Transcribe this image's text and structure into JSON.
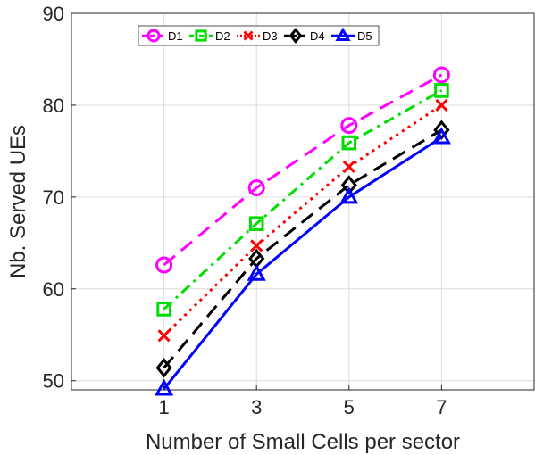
{
  "chart_data": {
    "type": "line",
    "xlabel": "Number of Small Cells per sector",
    "ylabel": "Nb. Served UEs",
    "x": [
      1,
      3,
      5,
      7
    ],
    "xlim": [
      -1,
      9
    ],
    "ylim": [
      49,
      90
    ],
    "xticks": [
      1,
      3,
      5,
      7
    ],
    "yticks": [
      50,
      60,
      70,
      80,
      90
    ],
    "grid": true,
    "legend_position": "top-left",
    "series": [
      {
        "name": "D1",
        "values": [
          62.6,
          71.0,
          77.8,
          83.3
        ],
        "color": "#ff00ff",
        "marker": "circle",
        "dash": "dashed"
      },
      {
        "name": "D2",
        "values": [
          57.8,
          67.1,
          75.9,
          81.6
        ],
        "color": "#00dd00",
        "marker": "square",
        "dash": "dashdot"
      },
      {
        "name": "D3",
        "values": [
          54.9,
          64.7,
          73.3,
          80.0
        ],
        "color": "#ff0000",
        "marker": "x",
        "dash": "dotted"
      },
      {
        "name": "D4",
        "values": [
          51.4,
          63.3,
          71.3,
          77.3
        ],
        "color": "#000000",
        "marker": "diamond",
        "dash": "dashed"
      },
      {
        "name": "D5",
        "values": [
          49.1,
          61.6,
          70.0,
          76.5
        ],
        "color": "#0000ff",
        "marker": "triangle",
        "dash": "solid"
      }
    ]
  }
}
